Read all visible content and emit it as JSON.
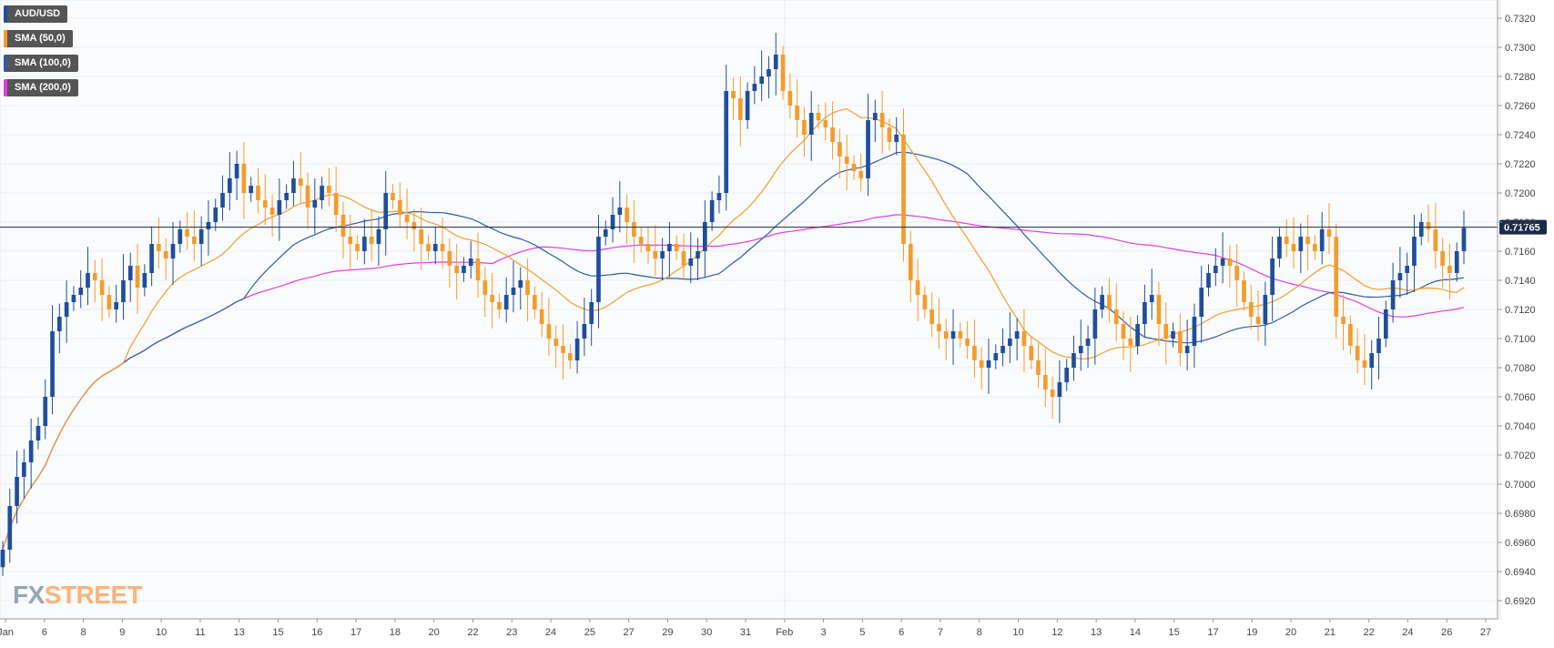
{
  "chart_data": {
    "type": "candlestick",
    "symbol": "AUD/USD",
    "last_price": "0.71765",
    "ylim": [
      0.691,
      0.733
    ],
    "y_ticks": [
      "0.6920",
      "0.6940",
      "0.6960",
      "0.6980",
      "0.7000",
      "0.7020",
      "0.7040",
      "0.7060",
      "0.7080",
      "0.7100",
      "0.7120",
      "0.7140",
      "0.7160",
      "0.7180",
      "0.7200",
      "0.7220",
      "0.7240",
      "0.7260",
      "0.7280",
      "0.7300",
      "0.7320"
    ],
    "x_labels": [
      "Jan",
      "6",
      "8",
      "9",
      "10",
      "11",
      "13",
      "15",
      "16",
      "17",
      "18",
      "20",
      "22",
      "23",
      "24",
      "25",
      "27",
      "29",
      "30",
      "31",
      "Feb",
      "3",
      "5",
      "6",
      "7",
      "8",
      "10",
      "12",
      "13",
      "14",
      "15",
      "17",
      "19",
      "20",
      "21",
      "22",
      "24",
      "26",
      "27"
    ],
    "legend": [
      {
        "label": "AUD/USD",
        "color": "#1f4e9c"
      },
      {
        "label": "SMA (50,0)",
        "color": "#f39c2c"
      },
      {
        "label": "SMA (100,0)",
        "color": "#2e5aa8"
      },
      {
        "label": "SMA (200,0)",
        "color": "#e23de0"
      }
    ],
    "colors": {
      "up": "#1f4e9c",
      "down": "#f39c2c",
      "sma50": "#f39c2c",
      "sma100": "#2e5aa8",
      "sma200": "#e23de0",
      "price_line": "#1a2b4a"
    },
    "candles_close": [
      0.6955,
      0.6985,
      0.7005,
      0.7015,
      0.703,
      0.704,
      0.706,
      0.7105,
      0.7115,
      0.7125,
      0.713,
      0.7135,
      0.7145,
      0.714,
      0.713,
      0.712,
      0.7125,
      0.714,
      0.715,
      0.7135,
      0.7145,
      0.7165,
      0.716,
      0.7155,
      0.7165,
      0.7175,
      0.717,
      0.7165,
      0.7175,
      0.718,
      0.719,
      0.72,
      0.721,
      0.722,
      0.72,
      0.7205,
      0.7195,
      0.719,
      0.7185,
      0.7195,
      0.72,
      0.721,
      0.7205,
      0.719,
      0.7195,
      0.7205,
      0.72,
      0.7185,
      0.717,
      0.7165,
      0.716,
      0.717,
      0.7165,
      0.7175,
      0.72,
      0.7195,
      0.7185,
      0.718,
      0.7175,
      0.7165,
      0.716,
      0.7165,
      0.716,
      0.715,
      0.7145,
      0.715,
      0.7155,
      0.714,
      0.713,
      0.7125,
      0.712,
      0.713,
      0.7135,
      0.714,
      0.713,
      0.712,
      0.711,
      0.71,
      0.7095,
      0.709,
      0.7085,
      0.71,
      0.711,
      0.7125,
      0.717,
      0.7175,
      0.7185,
      0.719,
      0.718,
      0.717,
      0.7165,
      0.716,
      0.7155,
      0.716,
      0.7165,
      0.716,
      0.715,
      0.7155,
      0.716,
      0.718,
      0.7195,
      0.72,
      0.727,
      0.7265,
      0.725,
      0.727,
      0.7275,
      0.728,
      0.7285,
      0.7295,
      0.727,
      0.726,
      0.725,
      0.724,
      0.7255,
      0.725,
      0.7245,
      0.7235,
      0.7225,
      0.722,
      0.7215,
      0.721,
      0.725,
      0.7255,
      0.7245,
      0.7235,
      0.724,
      0.7165,
      0.714,
      0.713,
      0.712,
      0.711,
      0.7105,
      0.71,
      0.7105,
      0.71,
      0.7095,
      0.7085,
      0.708,
      0.7085,
      0.709,
      0.7095,
      0.71,
      0.7105,
      0.7095,
      0.7085,
      0.7075,
      0.7065,
      0.706,
      0.707,
      0.708,
      0.709,
      0.7095,
      0.71,
      0.712,
      0.713,
      0.712,
      0.711,
      0.71,
      0.7095,
      0.711,
      0.7125,
      0.713,
      0.711,
      0.71,
      0.7105,
      0.709,
      0.7095,
      0.7115,
      0.7135,
      0.7145,
      0.715,
      0.7155,
      0.715,
      0.714,
      0.7125,
      0.7115,
      0.711,
      0.713,
      0.7155,
      0.717,
      0.7165,
      0.716,
      0.717,
      0.7165,
      0.716,
      0.7175,
      0.717,
      0.7115,
      0.711,
      0.7095,
      0.7085,
      0.708,
      0.709,
      0.71,
      0.712,
      0.714,
      0.7145,
      0.715,
      0.717,
      0.718,
      0.7175,
      0.716,
      0.715,
      0.7145,
      0.716,
      0.7176
    ]
  }
}
